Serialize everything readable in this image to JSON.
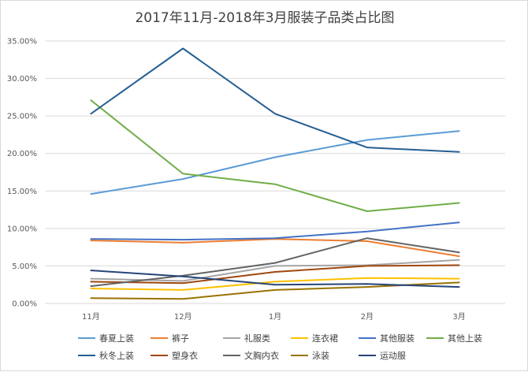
{
  "chart_data": {
    "type": "line",
    "title": "2017年11月-2018年3月服装子品类占比图",
    "xlabel": "",
    "ylabel": "",
    "categories": [
      "11月",
      "12月",
      "1月",
      "2月",
      "3月"
    ],
    "ylim": [
      0,
      35
    ],
    "yticks": [
      "0.00%",
      "5.00%",
      "10.00%",
      "15.00%",
      "20.00%",
      "25.00%",
      "30.00%",
      "35.00%"
    ],
    "grid": true,
    "legend_position": "bottom",
    "series": [
      {
        "name": "春夏上装",
        "color": "#5b9bd5",
        "values": [
          14.6,
          16.6,
          19.5,
          21.8,
          23.0
        ]
      },
      {
        "name": "裤子",
        "color": "#ed7d31",
        "values": [
          8.4,
          8.1,
          8.6,
          8.3,
          6.3
        ]
      },
      {
        "name": "礼服类",
        "color": "#a5a5a5",
        "values": [
          3.3,
          3.0,
          5.0,
          5.1,
          5.8
        ]
      },
      {
        "name": "连衣裙",
        "color": "#ffc000",
        "values": [
          2.0,
          1.8,
          2.9,
          3.4,
          3.3
        ]
      },
      {
        "name": "其他服装",
        "color": "#4472c4",
        "values": [
          8.6,
          8.5,
          8.7,
          9.6,
          10.8
        ]
      },
      {
        "name": "其他上装",
        "color": "#70ad47",
        "values": [
          27.1,
          17.3,
          15.9,
          12.3,
          13.4
        ]
      },
      {
        "name": "秋冬上装",
        "color": "#255e91",
        "values": [
          25.3,
          34.0,
          25.3,
          20.8,
          20.2
        ]
      },
      {
        "name": "塑身衣",
        "color": "#9e480e",
        "values": [
          2.9,
          2.7,
          4.2,
          5.0,
          5.1
        ]
      },
      {
        "name": "文胸内衣",
        "color": "#636363",
        "values": [
          2.3,
          3.7,
          5.4,
          8.7,
          6.8
        ]
      },
      {
        "name": "泳装",
        "color": "#997300",
        "values": [
          0.7,
          0.6,
          1.8,
          2.2,
          2.8
        ]
      },
      {
        "name": "运动服",
        "color": "#264478",
        "values": [
          4.4,
          3.6,
          2.5,
          2.6,
          2.2
        ]
      }
    ]
  }
}
